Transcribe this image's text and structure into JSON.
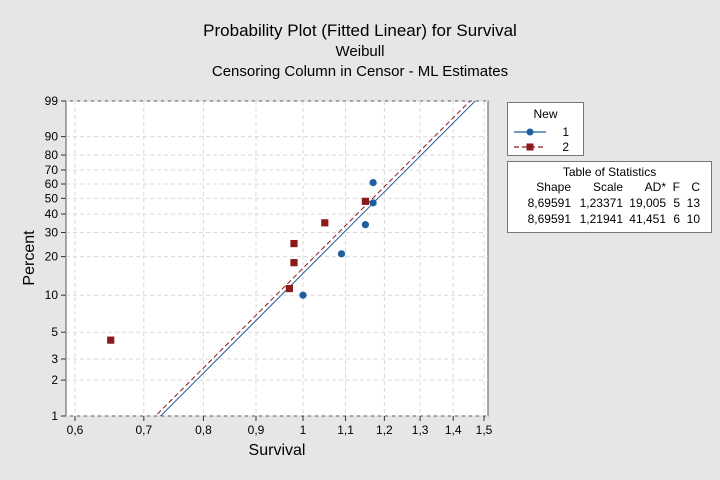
{
  "chart_data": {
    "type": "scatter",
    "title": "Probability Plot (Fitted Linear) for Survival",
    "subtitles": [
      "Weibull",
      "Censoring Column in Censor - ML Estimates"
    ],
    "xlabel": "Survival",
    "ylabel": "Percent",
    "x_scale": "log",
    "y_scale": "weibull",
    "xlim": [
      0.58,
      1.5
    ],
    "ylim": [
      1,
      99
    ],
    "x_ticks": [
      0.6,
      0.7,
      0.8,
      0.9,
      1.0,
      1.1,
      1.2,
      1.3,
      1.4,
      1.5
    ],
    "x_tick_labels": [
      "0,6",
      "0,7",
      "0,8",
      "0,9",
      "1",
      "1,1",
      "1,2",
      "1,3",
      "1,4",
      "1,5"
    ],
    "y_ticks": [
      1,
      2,
      3,
      5,
      10,
      20,
      30,
      40,
      50,
      60,
      70,
      80,
      90,
      99
    ],
    "y_tick_labels": [
      "1",
      "2",
      "3",
      "5",
      "10",
      "20",
      "30",
      "40",
      "50",
      "60",
      "70",
      "80",
      "90",
      "99"
    ],
    "grid": true,
    "legend_placement": "right",
    "legend": {
      "title": "New",
      "entries": [
        {
          "label": "1",
          "color": "#1f5f9e",
          "marker": "circle",
          "line": "solid"
        },
        {
          "label": "2",
          "color": "#8b1a1a",
          "marker": "square",
          "line": "dashed"
        }
      ]
    },
    "series": [
      {
        "label": "1",
        "color": "#1f5f9e",
        "marker": "circle",
        "dash": "solid",
        "fit": {
          "shape": 8.69591,
          "scale": 1.23371
        },
        "points": [
          [
            1.0,
            10.0
          ],
          [
            1.09,
            21.0
          ],
          [
            1.15,
            34.0
          ],
          [
            1.17,
            47.0
          ],
          [
            1.17,
            61.0
          ]
        ]
      },
      {
        "label": "2",
        "color": "#8b1a1a",
        "marker": "square",
        "dash": "dashed",
        "fit": {
          "shape": 8.69591,
          "scale": 1.21941
        },
        "points": [
          [
            0.65,
            4.3
          ],
          [
            0.97,
            11.3
          ],
          [
            0.98,
            18.0
          ],
          [
            0.98,
            25.0
          ],
          [
            1.05,
            35.0
          ],
          [
            1.15,
            48.0
          ]
        ]
      }
    ],
    "stats_table": {
      "title": "Table of Statistics",
      "headers": [
        "Shape",
        "Scale",
        "AD*",
        "F",
        "C"
      ],
      "rows": [
        [
          "8,69591",
          "1,23371",
          "19,005",
          "5",
          "13"
        ],
        [
          "8,69591",
          "1,21941",
          "41,451",
          "6",
          "10"
        ]
      ]
    }
  }
}
